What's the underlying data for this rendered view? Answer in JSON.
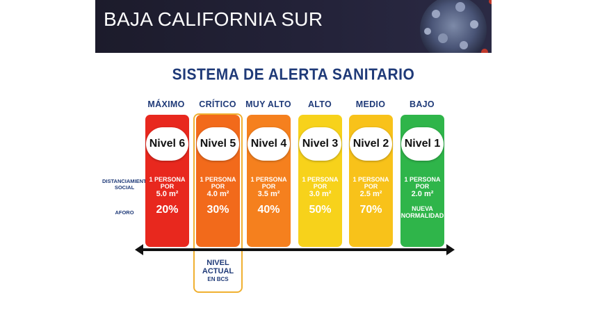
{
  "header": {
    "title": "BAJA CALIFORNIA SUR"
  },
  "main_title": "SISTEMA DE ALERTA SANITARIO",
  "row_labels": {
    "distanciamiento_1": "DISTANCIAMIENTO",
    "distanciamiento_2": "SOCIAL",
    "aforo": "AFORO"
  },
  "levels": [
    {
      "head": "MÁXIMO",
      "badge": "Nivel 6",
      "dist_1": "1 PERSONA POR",
      "dist_2": "5.0 m²",
      "aforo": "20%",
      "color": "#e8281e"
    },
    {
      "head": "CRÍTICO",
      "badge": "Nivel 5",
      "dist_1": "1 PERSONA POR",
      "dist_2": "4.0 m²",
      "aforo": "30%",
      "color": "#f26a1b"
    },
    {
      "head": "MUY ALTO",
      "badge": "Nivel 4",
      "dist_1": "1 PERSONA POR",
      "dist_2": "3.5 m²",
      "aforo": "40%",
      "color": "#f5801e"
    },
    {
      "head": "ALTO",
      "badge": "Nivel 3",
      "dist_1": "1 PERSONA POR",
      "dist_2": "3.0 m²",
      "aforo": "50%",
      "color": "#f7d21b"
    },
    {
      "head": "MEDIO",
      "badge": "Nivel 2",
      "dist_1": "1 PERSONA POR",
      "dist_2": "2.5 m²",
      "aforo": "70%",
      "color": "#f8c21a"
    },
    {
      "head": "BAJO",
      "badge": "Nivel 1",
      "dist_1": "1 PERSONA POR",
      "dist_2": "2.0 m²",
      "aforo_1": "NUEVA",
      "aforo_2": "NORMALIDAD",
      "color": "#2fb54a"
    }
  ],
  "current": {
    "line1": "NIVEL",
    "line2": "ACTUAL",
    "line3": "EN BCS"
  }
}
